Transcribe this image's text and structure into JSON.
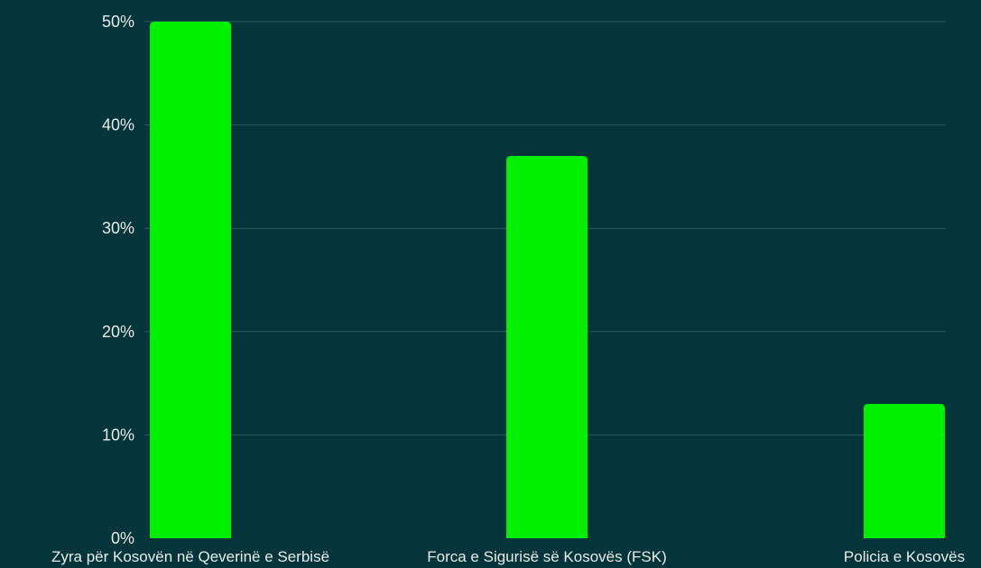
{
  "chart_data": {
    "type": "bar",
    "categories": [
      "Zyra për Kosovën në Qeverinë e Serbisë",
      "Forca e Sigurisë së Kosovës (FSK)",
      "Policia e Kosovës"
    ],
    "values": [
      50,
      37,
      13
    ],
    "y_ticks": [
      "0%",
      "10%",
      "20%",
      "30%",
      "40%",
      "50%"
    ],
    "ylim": [
      0,
      50
    ],
    "grid": true,
    "colors": {
      "background": "#04353a",
      "bar": "#00f000",
      "gridline": "#2d5a5d",
      "text": "#e8ece9"
    }
  }
}
